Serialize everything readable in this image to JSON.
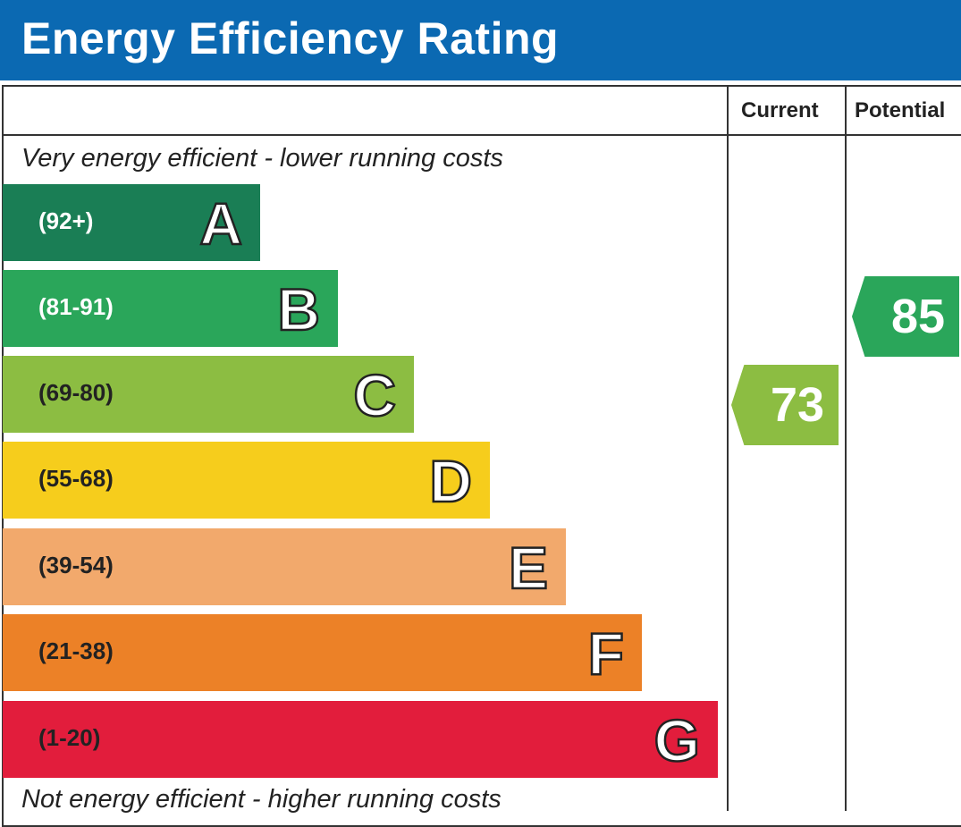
{
  "header": {
    "title": "Energy Efficiency Rating"
  },
  "columns": {
    "current": "Current",
    "potential": "Potential"
  },
  "notes": {
    "top": "Very energy efficient - lower running costs",
    "bottom": "Not energy efficient - higher running costs"
  },
  "chart_data": {
    "type": "bar",
    "title": "Energy Efficiency Rating",
    "bands": [
      {
        "letter": "A",
        "range": "(92+)",
        "color": "#1a7e55",
        "text_color": "#ffffff"
      },
      {
        "letter": "B",
        "range": "(81-91)",
        "color": "#2aa65a",
        "text_color": "#ffffff"
      },
      {
        "letter": "C",
        "range": "(69-80)",
        "color": "#8cbd42",
        "text_color": "#222222"
      },
      {
        "letter": "D",
        "range": "(55-68)",
        "color": "#f6cd1c",
        "text_color": "#222222"
      },
      {
        "letter": "E",
        "range": "(39-54)",
        "color": "#f2a96c",
        "text_color": "#222222"
      },
      {
        "letter": "F",
        "range": "(21-38)",
        "color": "#ec8127",
        "text_color": "#222222"
      },
      {
        "letter": "G",
        "range": "(1-20)",
        "color": "#e21d3c",
        "text_color": "#222222"
      }
    ],
    "current": {
      "value": 73,
      "band": "C",
      "color": "#8cbd42"
    },
    "potential": {
      "value": 85,
      "band": "B",
      "color": "#2aa65a"
    }
  }
}
